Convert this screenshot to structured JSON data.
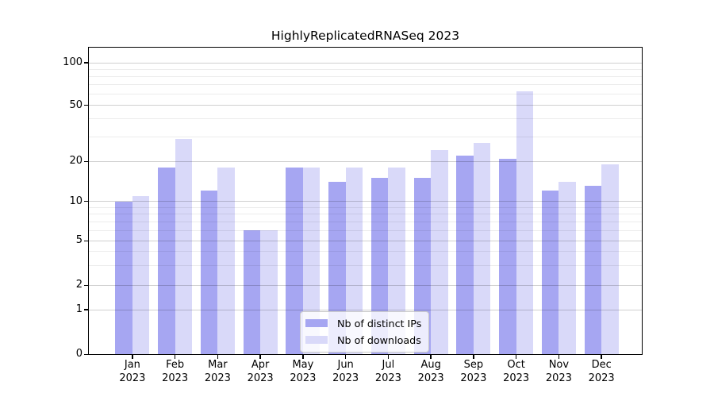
{
  "title": "HighlyReplicatedRNASeq 2023",
  "chart_data": {
    "type": "bar",
    "title": "HighlyReplicatedRNASeq 2023",
    "categories": [
      "Jan 2023",
      "Feb 2023",
      "Mar 2023",
      "Apr 2023",
      "May 2023",
      "Jun 2023",
      "Jul 2023",
      "Aug 2023",
      "Sep 2023",
      "Oct 2023",
      "Nov 2023",
      "Dec 2023"
    ],
    "series": [
      {
        "name": "Nb of distinct IPs",
        "key": "distinct-ips",
        "color": "#a6a6f2",
        "values": [
          10,
          18,
          12,
          6,
          18,
          14,
          15,
          15,
          22,
          21,
          12,
          13
        ]
      },
      {
        "name": "Nb of downloads",
        "key": "downloads",
        "color": "#d9d9f9",
        "values": [
          11,
          29,
          18,
          6,
          18,
          18,
          18,
          24,
          27,
          63,
          14,
          19
        ]
      }
    ],
    "xlabel": "",
    "ylabel": "",
    "yscale": "log-like with 0 baseline (symlog)",
    "ylim": [
      0,
      130
    ],
    "y_ticks": [
      0,
      1,
      2,
      5,
      10,
      20,
      50,
      100
    ],
    "y_minor_ticks": [
      3,
      4,
      6,
      7,
      8,
      9,
      30,
      40,
      60,
      70,
      80,
      90
    ],
    "grid": true,
    "legend_position": "lower center",
    "axis_color": "#000000",
    "grid_major_color": "#cfcfcf",
    "grid_minor_color": "#ececec"
  },
  "legend": {
    "items": [
      {
        "label": "Nb of distinct IPs"
      },
      {
        "label": "Nb of downloads"
      }
    ]
  }
}
